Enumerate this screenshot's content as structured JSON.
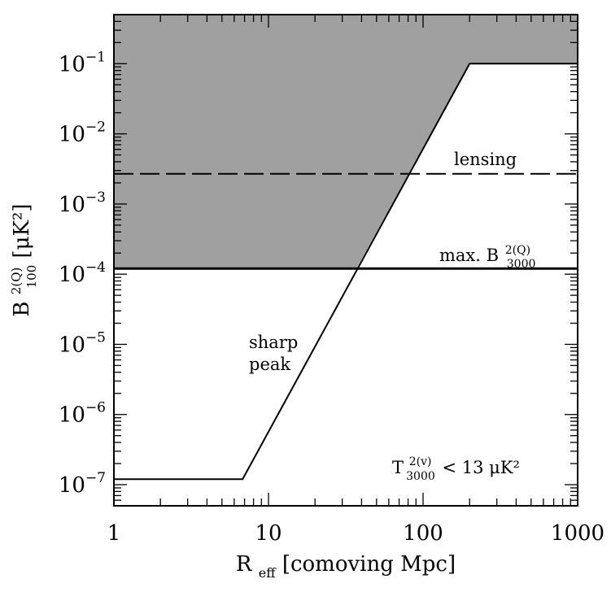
{
  "chart_data": {
    "type": "line",
    "x_scale": "log",
    "y_scale": "log",
    "xlim": [
      1,
      1000
    ],
    "ylim": [
      5e-08,
      0.5
    ],
    "xlabel": {
      "main": "R",
      "sub": "eff",
      "rest": " [comoving Mpc]"
    },
    "ylabel": {
      "main": "B",
      "sup": "2(Q)",
      "sub": "100",
      "rest": " [μK²]"
    },
    "x_ticks": [
      {
        "value": 1,
        "label": "1"
      },
      {
        "value": 10,
        "label": "10"
      },
      {
        "value": 100,
        "label": "100"
      },
      {
        "value": 1000,
        "label": "1000"
      }
    ],
    "y_ticks": [
      {
        "value": 1e-07,
        "base": "10",
        "exp": "−7"
      },
      {
        "value": 1e-06,
        "base": "10",
        "exp": "−6"
      },
      {
        "value": 1e-05,
        "base": "10",
        "exp": "−5"
      },
      {
        "value": 0.0001,
        "base": "10",
        "exp": "−4"
      },
      {
        "value": 0.001,
        "base": "10",
        "exp": "−3"
      },
      {
        "value": 0.01,
        "base": "10",
        "exp": "−2"
      },
      {
        "value": 0.1,
        "base": "10",
        "exp": "−1"
      }
    ],
    "excluded_region": {
      "color": "#a0a0a0",
      "boundary": [
        [
          1,
          0.00012
        ],
        [
          37,
          0.00012
        ],
        [
          200,
          0.1
        ],
        [
          1000,
          0.1
        ]
      ]
    },
    "series": [
      {
        "style": "solid",
        "points": [
          [
            1,
            1.2e-07
          ],
          [
            6.8,
            1.2e-07
          ],
          [
            200,
            0.1
          ],
          [
            1000,
            0.1
          ]
        ]
      },
      {
        "style": "solid-thick",
        "points": [
          [
            1,
            0.00012
          ],
          [
            1000,
            0.00012
          ]
        ]
      },
      {
        "style": "dashed",
        "points": [
          [
            1,
            0.0027
          ],
          [
            1000,
            0.0027
          ]
        ]
      }
    ],
    "annotations": {
      "lensing": "lensing",
      "max_prefix": "max. B",
      "max_sup": "2(Q)",
      "max_sub": "3000",
      "sharp": "sharp",
      "peak": "peak",
      "t_main": "T",
      "t_sup": "2(v)",
      "t_sub": "3000",
      "t_rest": " < 13 μK²"
    },
    "colors": {
      "fill": "#a0a0a0",
      "line": "#000000"
    }
  }
}
